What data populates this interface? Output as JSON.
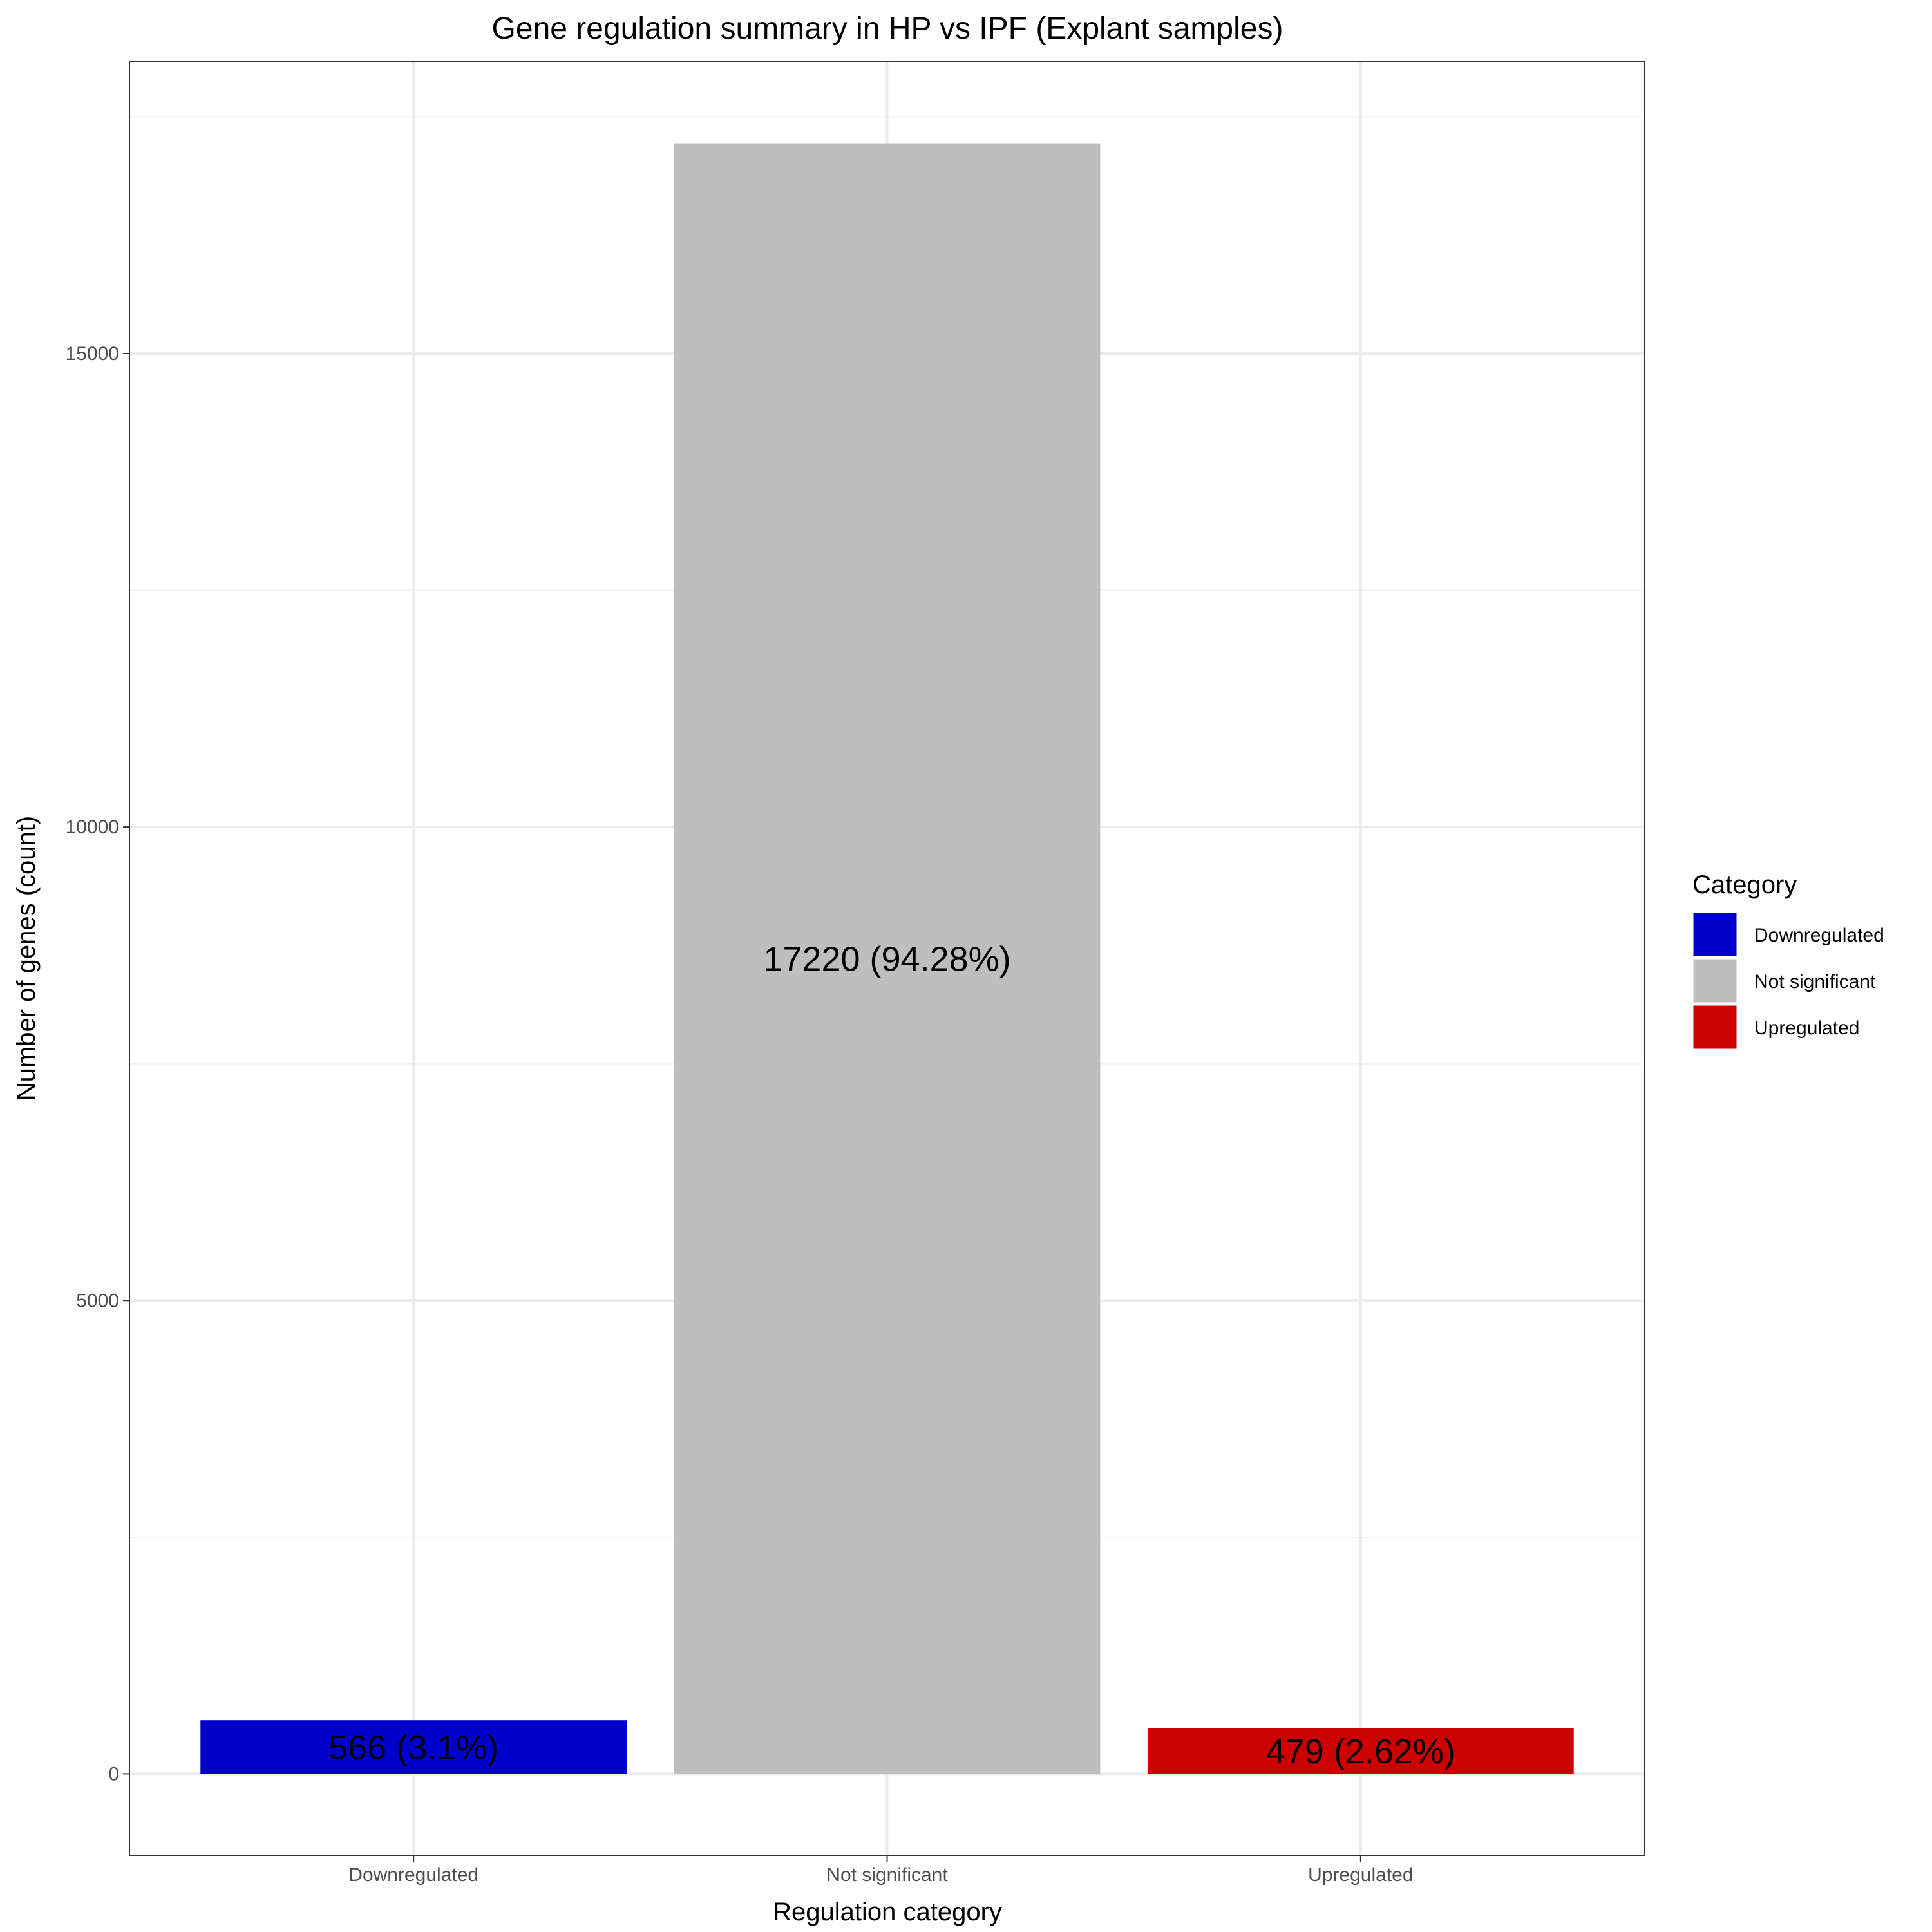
{
  "chart_data": {
    "type": "bar",
    "title": "Gene regulation summary in HP vs IPF (Explant samples)",
    "xlabel": "Regulation category",
    "ylabel": "Number of genes (count)",
    "categories": [
      "Downregulated",
      "Not significant",
      "Upregulated"
    ],
    "values": [
      566,
      17220,
      479
    ],
    "data_labels": [
      "566 (3.1%)",
      "17220 (94.28%)",
      "479 (2.62%)"
    ],
    "colors": [
      "#0000CD",
      "#BEBEBE",
      "#CD0000"
    ],
    "ylim": [
      -861,
      18081
    ],
    "y_ticks": [
      0,
      5000,
      10000,
      15000
    ],
    "y_tick_labels": [
      "0",
      "5000",
      "10000",
      "15000"
    ],
    "grid": true,
    "legend": {
      "title": "Category",
      "placement": "right",
      "entries": [
        "Downregulated",
        "Not significant",
        "Upregulated"
      ]
    }
  }
}
